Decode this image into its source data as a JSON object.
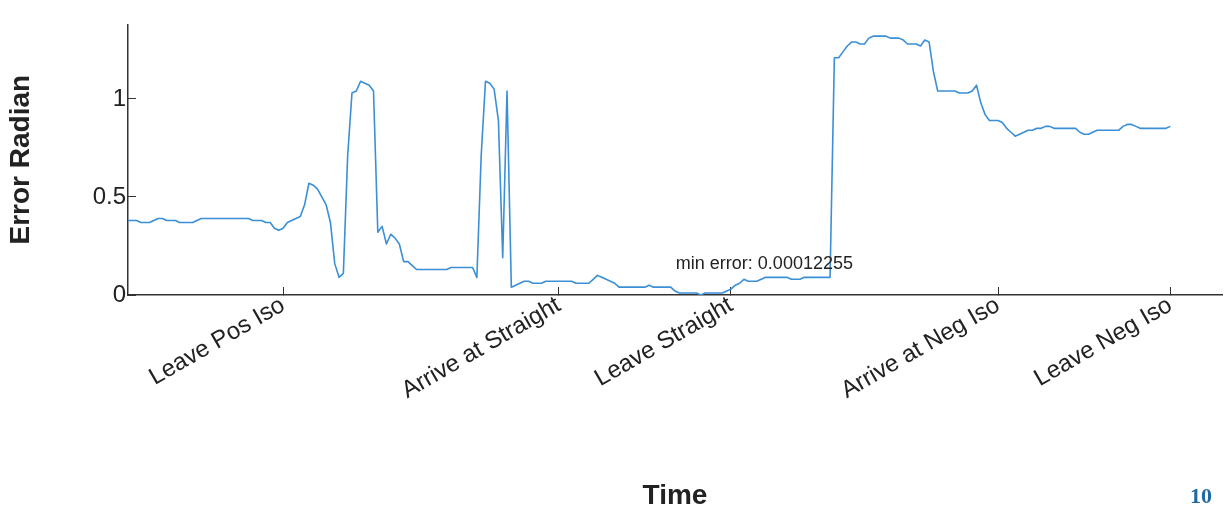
{
  "chart_data": {
    "type": "line",
    "xlabel": "Time",
    "ylabel": "Error Radian",
    "marker": "none",
    "categories": [
      null,
      null,
      null,
      null,
      null,
      null,
      null,
      null,
      null,
      null,
      null,
      null,
      null,
      null,
      null,
      null,
      null,
      null,
      null,
      null,
      null,
      null,
      null,
      null,
      null,
      null,
      null,
      null,
      null,
      null,
      null,
      null,
      null,
      null,
      null,
      null,
      "Leave Pos Iso",
      null,
      null,
      null,
      null,
      null,
      null,
      null,
      null,
      null,
      null,
      null,
      null,
      null,
      null,
      null,
      null,
      null,
      null,
      null,
      null,
      null,
      null,
      null,
      null,
      null,
      null,
      null,
      null,
      null,
      null,
      null,
      null,
      null,
      null,
      null,
      null,
      null,
      null,
      null,
      null,
      null,
      null,
      null,
      null,
      null,
      null,
      null,
      null,
      null,
      null,
      null,
      null,
      null,
      null,
      null,
      null,
      null,
      null,
      null,
      null,
      null,
      null,
      null,
      "Arrive at Straight",
      null,
      null,
      null,
      null,
      null,
      null,
      null,
      null,
      null,
      null,
      null,
      null,
      null,
      null,
      null,
      null,
      null,
      null,
      null,
      null,
      null,
      null,
      null,
      null,
      null,
      null,
      null,
      null,
      null,
      null,
      null,
      null,
      null,
      null,
      null,
      null,
      null,
      null,
      null,
      "Leave Straight",
      null,
      null,
      null,
      null,
      null,
      null,
      null,
      null,
      null,
      null,
      null,
      null,
      null,
      null,
      null,
      null,
      null,
      null,
      null,
      null,
      null,
      null,
      null,
      null,
      null,
      null,
      null,
      null,
      null,
      null,
      null,
      null,
      null,
      null,
      null,
      null,
      null,
      null,
      null,
      null,
      null,
      null,
      null,
      null,
      null,
      null,
      null,
      null,
      null,
      null,
      null,
      null,
      null,
      null,
      null,
      null,
      null,
      null,
      null,
      null,
      null,
      "Arrive at Neg Iso",
      null,
      null,
      null,
      null,
      null,
      null,
      null,
      null,
      null,
      null,
      null,
      null,
      null,
      null,
      null,
      null,
      null,
      null,
      null,
      null,
      null,
      null,
      null,
      null,
      null,
      null,
      null,
      null,
      null,
      null,
      null,
      null,
      null,
      null,
      null,
      null,
      null,
      null,
      null,
      "Leave Neg Iso",
      null,
      null,
      null,
      null,
      null,
      null,
      null,
      null,
      null,
      null,
      null,
      null
    ],
    "values": [
      0.38,
      0.38,
      0.38,
      0.37,
      0.37,
      0.37,
      0.38,
      0.39,
      0.39,
      0.38,
      0.38,
      0.38,
      0.37,
      0.37,
      0.37,
      0.37,
      0.38,
      0.39,
      0.39,
      0.39,
      0.39,
      0.39,
      0.39,
      0.39,
      0.39,
      0.39,
      0.39,
      0.39,
      0.39,
      0.38,
      0.38,
      0.38,
      0.37,
      0.37,
      0.34,
      0.33,
      0.34,
      0.37,
      0.38,
      0.39,
      0.4,
      0.46,
      0.57,
      0.56,
      0.54,
      0.5,
      0.46,
      0.37,
      0.16,
      0.09,
      0.11,
      0.71,
      1.03,
      1.04,
      1.09,
      1.08,
      1.07,
      1.04,
      0.32,
      0.35,
      0.26,
      0.31,
      0.29,
      0.26,
      0.17,
      0.17,
      0.15,
      0.13,
      0.13,
      0.13,
      0.13,
      0.13,
      0.13,
      0.13,
      0.13,
      0.14,
      0.14,
      0.14,
      0.14,
      0.14,
      0.14,
      0.09,
      0.71,
      1.09,
      1.08,
      1.05,
      0.89,
      0.19,
      1.04,
      0.04,
      0.05,
      0.06,
      0.07,
      0.07,
      0.06,
      0.06,
      0.06,
      0.07,
      0.07,
      0.07,
      0.07,
      0.07,
      0.07,
      0.07,
      0.06,
      0.06,
      0.06,
      0.06,
      0.08,
      0.1,
      0.09,
      0.08,
      0.07,
      0.06,
      0.04,
      0.04,
      0.04,
      0.04,
      0.04,
      0.04,
      0.04,
      0.05,
      0.04,
      0.04,
      0.04,
      0.04,
      0.04,
      0.02,
      0.01,
      0.01,
      0.01,
      0.01,
      0.01,
      0,
      0.01,
      0.01,
      0.01,
      0.01,
      0.01,
      0.02,
      0.03,
      0.05,
      0.06,
      0.08,
      0.07,
      0.07,
      0.07,
      0.08,
      0.09,
      0.09,
      0.09,
      0.09,
      0.09,
      0.09,
      0.08,
      0.08,
      0.08,
      0.09,
      0.09,
      0.09,
      0.09,
      0.09,
      0.09,
      0.09,
      1.21,
      1.21,
      1.24,
      1.27,
      1.29,
      1.29,
      1.28,
      1.28,
      1.31,
      1.32,
      1.32,
      1.32,
      1.32,
      1.31,
      1.31,
      1.31,
      1.3,
      1.28,
      1.28,
      1.28,
      1.27,
      1.3,
      1.29,
      1.14,
      1.04,
      1.04,
      1.04,
      1.04,
      1.04,
      1.03,
      1.03,
      1.03,
      1.04,
      1.07,
      0.98,
      0.92,
      0.89,
      0.89,
      0.89,
      0.88,
      0.85,
      0.83,
      0.81,
      0.82,
      0.83,
      0.84,
      0.84,
      0.85,
      0.85,
      0.86,
      0.86,
      0.85,
      0.85,
      0.85,
      0.85,
      0.85,
      0.85,
      0.83,
      0.82,
      0.82,
      0.83,
      0.84,
      0.84,
      0.84,
      0.84,
      0.84,
      0.84,
      0.86,
      0.87,
      0.87,
      0.86,
      0.85,
      0.85,
      0.85,
      0.85,
      0.85,
      0.85,
      0.85,
      0.86,
      null,
      null,
      null,
      null,
      null,
      null,
      null,
      null,
      null,
      null,
      null,
      null
    ],
    "color": "#3a8fd6",
    "ylim": [
      0,
      1.38
    ],
    "yticks": [
      0,
      0.5,
      1
    ],
    "annotations": [
      "min error: 0.00012255",
      "10"
    ]
  }
}
